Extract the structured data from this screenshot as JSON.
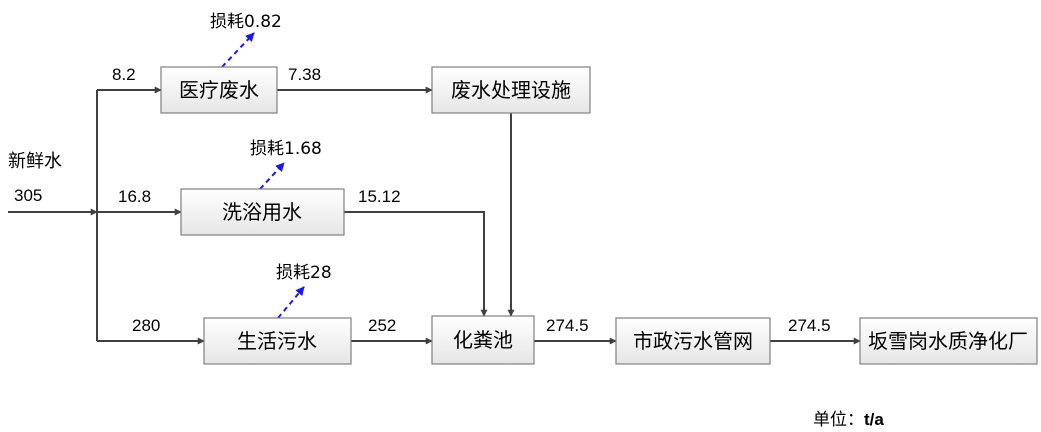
{
  "source": {
    "label": "新鲜水",
    "value": "305"
  },
  "nodes": {
    "medical": "医疗废水",
    "treatment": "废水处理设施",
    "bath": "洗浴用水",
    "domestic": "生活污水",
    "septic": "化粪池",
    "network": "市政污水管网",
    "plant": "坂雪岗水质净化厂"
  },
  "flows": {
    "to_medical": "8.2",
    "medical_out": "7.38",
    "to_bath": "16.8",
    "bath_out": "15.12",
    "to_domestic": "280",
    "domestic_out": "252",
    "septic_out": "274.5",
    "network_out": "274.5"
  },
  "losses": {
    "medical": "损耗0.82",
    "bath": "损耗1.68",
    "domestic": "损耗28"
  },
  "unit": {
    "label": "单位：",
    "value": "t/a"
  },
  "colors": {
    "line": "#404040",
    "loss_arrow": "#1a1adc",
    "box_border": "#808080"
  }
}
